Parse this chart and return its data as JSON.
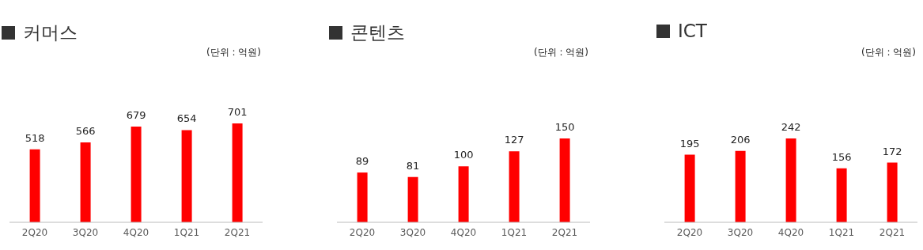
{
  "chart_data": [
    {
      "type": "bar",
      "title": "커머스",
      "subtitle": "(단위 : 억원)",
      "categories": [
        "2Q20",
        "3Q20",
        "4Q20",
        "1Q21",
        "2Q21"
      ],
      "values": [
        518,
        566,
        679,
        654,
        701
      ],
      "color": "#ff0000",
      "data_labels": true
    },
    {
      "type": "bar",
      "title": "콘텐츠",
      "subtitle": "(단위 : 억원)",
      "categories": [
        "2Q20",
        "3Q20",
        "4Q20",
        "1Q21",
        "2Q21"
      ],
      "values": [
        89,
        81,
        100,
        127,
        150
      ],
      "color": "#ff0000",
      "data_labels": true
    },
    {
      "type": "bar",
      "title": "ICT",
      "subtitle": "(단위 : 억원)",
      "categories": [
        "2Q20",
        "3Q20",
        "4Q20",
        "1Q21",
        "2Q21"
      ],
      "values": [
        195,
        206,
        242,
        156,
        172
      ],
      "color": "#ff0000",
      "data_labels": true
    }
  ]
}
